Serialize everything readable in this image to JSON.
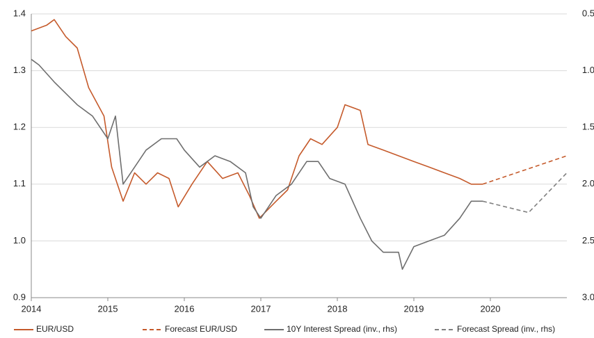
{
  "chart_data": {
    "type": "line",
    "xlim": [
      2014,
      2021
    ],
    "xticks": [
      2014,
      2015,
      2016,
      2017,
      2018,
      2019,
      2020
    ],
    "ylim": [
      0.9,
      1.4
    ],
    "yticks": [
      0.9,
      {
        "value": 1,
        "label": "1.0"
      },
      1.1,
      1.2,
      1.3,
      1.4
    ],
    "y2lim": [
      0.5,
      3
    ],
    "y2_inverted": true,
    "y2ticks": [
      0.5,
      {
        "value": 1,
        "label": "1.0"
      },
      1.5,
      {
        "value": 2,
        "label": "2.0"
      },
      2.5,
      {
        "value": 3,
        "label": "3.0"
      }
    ],
    "grid": true,
    "legend": "bottom",
    "series": [
      {
        "name": "EUR/USD",
        "color": "#c55a2b",
        "dashed": false,
        "axis": "y",
        "x": [
          2014.0,
          2014.2,
          2014.3,
          2014.45,
          2014.6,
          2014.75,
          2014.95,
          2015.05,
          2015.2,
          2015.35,
          2015.5,
          2015.65,
          2015.8,
          2015.92,
          2016.1,
          2016.3,
          2016.5,
          2016.7,
          2016.85,
          2016.98,
          2017.2,
          2017.35,
          2017.5,
          2017.65,
          2017.8,
          2018.0,
          2018.1,
          2018.3,
          2018.4,
          2018.6,
          2018.8,
          2019.0,
          2019.2,
          2019.4,
          2019.6,
          2019.75,
          2019.9
        ],
        "values": [
          1.37,
          1.38,
          1.39,
          1.36,
          1.34,
          1.27,
          1.22,
          1.13,
          1.07,
          1.12,
          1.1,
          1.12,
          1.11,
          1.06,
          1.1,
          1.14,
          1.11,
          1.12,
          1.08,
          1.04,
          1.07,
          1.09,
          1.15,
          1.18,
          1.17,
          1.2,
          1.24,
          1.23,
          1.17,
          1.16,
          1.15,
          1.14,
          1.13,
          1.12,
          1.11,
          1.1,
          1.1
        ]
      },
      {
        "name": "Forecast EUR/USD",
        "color": "#c55a2b",
        "dashed": true,
        "axis": "y",
        "x": [
          2019.9,
          2021
        ],
        "values": [
          1.1,
          1.15
        ]
      },
      {
        "name": "10Y Interest Spread (inv., rhs)",
        "color": "#6e6e6e",
        "dashed": false,
        "axis": "y2",
        "x": [
          2014.0,
          2014.1,
          2014.3,
          2014.6,
          2014.8,
          2015.0,
          2015.1,
          2015.2,
          2015.4,
          2015.5,
          2015.7,
          2015.9,
          2016.0,
          2016.2,
          2016.4,
          2016.6,
          2016.8,
          2016.9,
          2017.0,
          2017.2,
          2017.4,
          2017.6,
          2017.75,
          2017.9,
          2018.1,
          2018.3,
          2018.45,
          2018.6,
          2018.8,
          2018.85,
          2019.0,
          2019.2,
          2019.4,
          2019.6,
          2019.75,
          2019.9
        ],
        "values": [
          0.9,
          0.95,
          1.1,
          1.3,
          1.4,
          1.6,
          1.4,
          2.0,
          1.8,
          1.7,
          1.6,
          1.6,
          1.7,
          1.85,
          1.75,
          1.8,
          1.9,
          2.2,
          2.3,
          2.1,
          2.0,
          1.8,
          1.8,
          1.95,
          2.0,
          2.3,
          2.5,
          2.6,
          2.6,
          2.75,
          2.55,
          2.5,
          2.45,
          2.3,
          2.15,
          2.15
        ]
      },
      {
        "name": "Forecast Spread (inv., rhs)",
        "color": "#7f7f7f",
        "dashed": true,
        "axis": "y2",
        "x": [
          2019.9,
          2020.5,
          2021
        ],
        "values": [
          2.15,
          2.25,
          1.9
        ]
      }
    ]
  }
}
